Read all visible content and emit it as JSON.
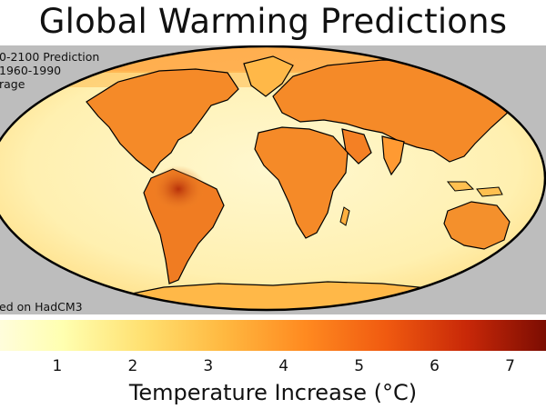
{
  "title": "Global Warming Predictions",
  "notes": {
    "line1": "0-2100 Prediction",
    "line2": "1960-1990",
    "line3": "rage",
    "model": "ed on HadCM3"
  },
  "legend": {
    "label": "Temperature Increase (°C)",
    "ticks": [
      "1",
      "2",
      "3",
      "4",
      "5",
      "6",
      "7"
    ],
    "range": [
      0,
      7.5
    ],
    "colors": [
      "#fffce8",
      "#ffffb0",
      "#ffe070",
      "#ffb840",
      "#ff8a20",
      "#f05a10",
      "#c82808",
      "#7a0c02"
    ]
  },
  "map": {
    "ocean_colors": [
      "#fff6c6",
      "#ffe9a0"
    ],
    "land_colors": [
      "#ffb040",
      "#f07820",
      "#c83a0c"
    ],
    "background": "#bdbdbd",
    "outline": "#000000"
  }
}
